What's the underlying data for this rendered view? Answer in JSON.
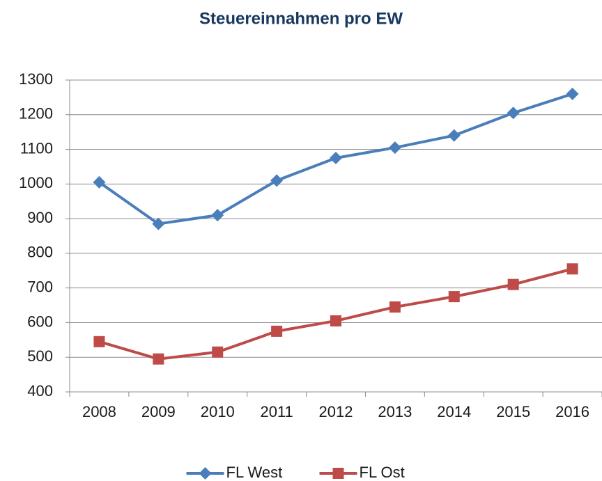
{
  "chart_data": {
    "type": "line",
    "title": "Steuereinnahmen pro EW",
    "categories": [
      "2008",
      "2009",
      "2010",
      "2011",
      "2012",
      "2013",
      "2014",
      "2015",
      "2016"
    ],
    "series": [
      {
        "name": "FL West",
        "color": "#4a7ebb",
        "marker": "diamond",
        "values": [
          1005,
          885,
          910,
          1010,
          1075,
          1105,
          1140,
          1205,
          1260
        ]
      },
      {
        "name": "FL Ost",
        "color": "#be4b48",
        "marker": "square",
        "values": [
          545,
          495,
          515,
          575,
          605,
          645,
          675,
          710,
          755
        ]
      }
    ],
    "ylim": [
      400,
      1300
    ],
    "yticks": [
      400,
      500,
      600,
      700,
      800,
      900,
      1000,
      1100,
      1200,
      1300
    ],
    "grid": true,
    "legend": "bottom"
  }
}
